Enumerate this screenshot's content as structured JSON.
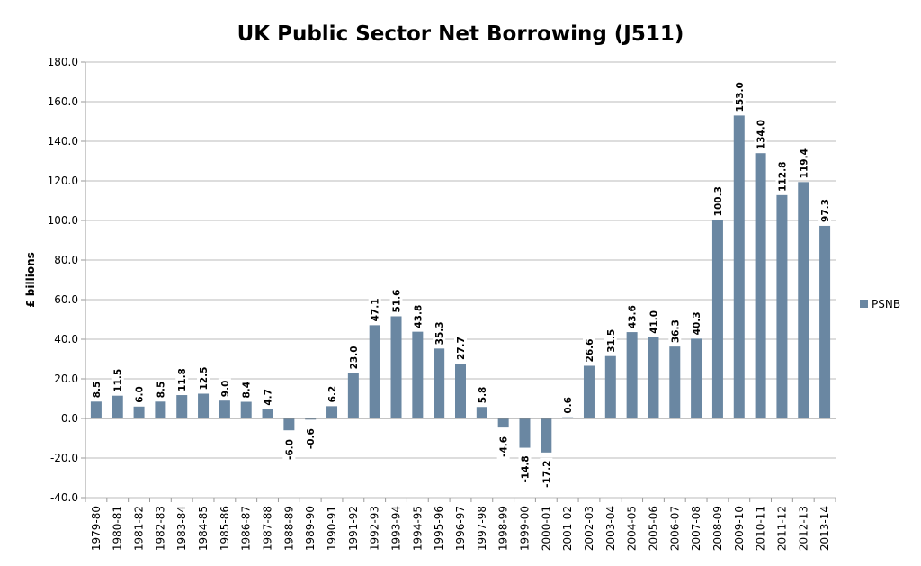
{
  "chart_data": {
    "type": "bar",
    "title": "UK Public Sector Net Borrowing (J511)",
    "xlabel": "",
    "ylabel": "£ billions",
    "ylim": [
      -40,
      180
    ],
    "ytick_step": 20,
    "grid": true,
    "legend_position": "right",
    "color": "#6a87a2",
    "categories": [
      "1979-80",
      "1980-81",
      "1981-82",
      "1982-83",
      "1983-84",
      "1984-85",
      "1985-86",
      "1986-87",
      "1987-88",
      "1988-89",
      "1989-90",
      "1990-91",
      "1991-92",
      "1992-93",
      "1993-94",
      "1994-95",
      "1995-96",
      "1996-97",
      "1997-98",
      "1998-99",
      "1999-00",
      "2000-01",
      "2001-02",
      "2002-03",
      "2003-04",
      "2004-05",
      "2005-06",
      "2006-07",
      "2007-08",
      "2008-09",
      "2009-10",
      "2010-11",
      "2011-12",
      "2012-13",
      "2013-14"
    ],
    "series": [
      {
        "name": "PSNB",
        "values": [
          8.5,
          11.5,
          6.0,
          8.5,
          11.8,
          12.5,
          9.0,
          8.4,
          4.7,
          -6.0,
          -0.6,
          6.2,
          23.0,
          47.1,
          51.6,
          43.8,
          35.3,
          27.7,
          5.8,
          -4.6,
          -14.8,
          -17.2,
          0.6,
          26.6,
          31.5,
          43.6,
          41.0,
          36.3,
          40.3,
          100.3,
          153.0,
          134.0,
          112.8,
          119.4,
          97.3
        ]
      }
    ]
  }
}
